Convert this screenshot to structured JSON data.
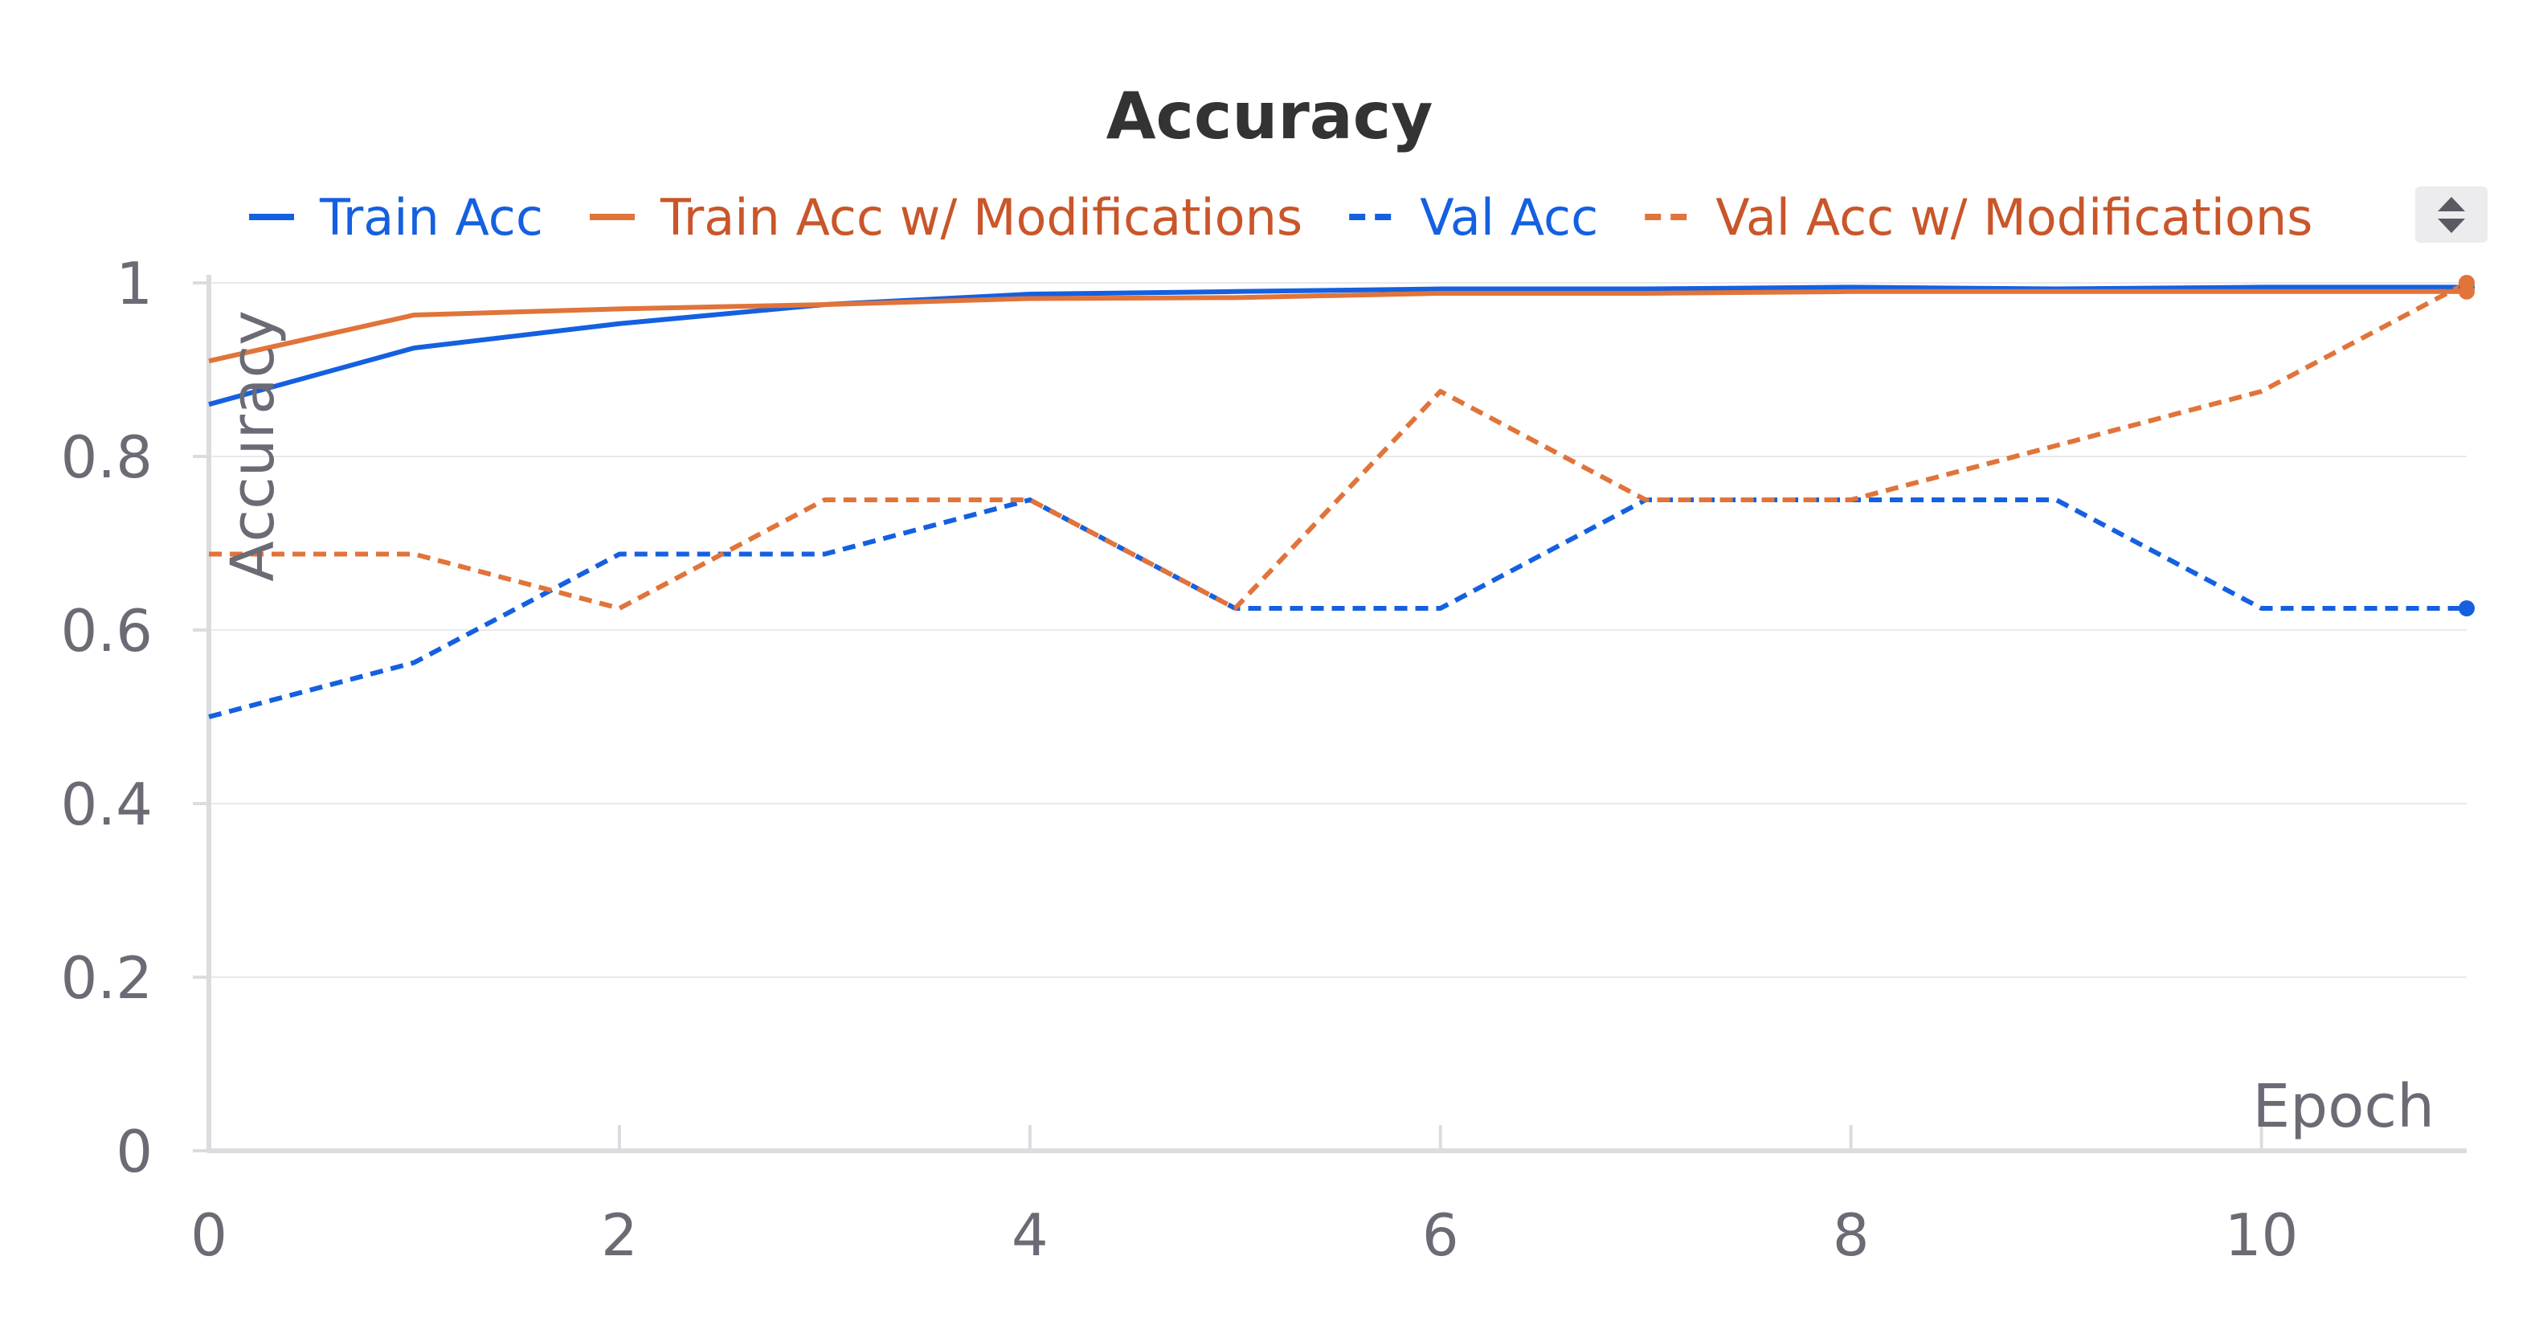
{
  "chart_data": {
    "type": "line",
    "title": "Accuracy",
    "xlabel": "Epoch",
    "ylabel": "Accuracy",
    "xlim": [
      0,
      11
    ],
    "ylim": [
      0,
      1
    ],
    "x": [
      0,
      1,
      2,
      3,
      4,
      5,
      6,
      7,
      8,
      9,
      10,
      11
    ],
    "x_ticks": [
      0,
      2,
      4,
      6,
      8,
      10
    ],
    "x_tick_labels": [
      "0",
      "2",
      "4",
      "6",
      "8",
      "10"
    ],
    "y_ticks": [
      0,
      0.2,
      0.4,
      0.6,
      0.8,
      1
    ],
    "y_tick_labels": [
      "0",
      "0.2",
      "0.4",
      "0.6",
      "0.8",
      "1"
    ],
    "grid": true,
    "legend_position": "top",
    "series": [
      {
        "name": "Train Acc",
        "color": "#1560e0",
        "dash": "solid",
        "legend_text_color": "#1560e0",
        "values": [
          0.86,
          0.925,
          0.953,
          0.975,
          0.987,
          0.99,
          0.993,
          0.993,
          0.995,
          0.993,
          0.995,
          0.995
        ]
      },
      {
        "name": "Train Acc w/ Modifications",
        "color": "#e0743a",
        "dash": "solid",
        "legend_text_color": "#c9562a",
        "values": [
          0.91,
          0.963,
          0.97,
          0.975,
          0.982,
          0.983,
          0.988,
          0.988,
          0.99,
          0.99,
          0.99,
          0.99
        ]
      },
      {
        "name": "Val Acc",
        "color": "#1560e0",
        "dash": "dashed",
        "legend_text_color": "#1560e0",
        "values": [
          0.5,
          0.5625,
          0.6875,
          0.6875,
          0.75,
          0.625,
          0.625,
          0.75,
          0.75,
          0.75,
          0.625,
          0.625
        ]
      },
      {
        "name": "Val Acc w/ Modifications",
        "color": "#e0743a",
        "dash": "dashed",
        "legend_text_color": "#c9562a",
        "values": [
          0.6875,
          0.6875,
          0.625,
          0.75,
          0.75,
          0.625,
          0.875,
          0.75,
          0.75,
          0.8125,
          0.875,
          1.0
        ]
      }
    ],
    "colors": {
      "grid": "#e9e9ec",
      "axis": "#dcdce0",
      "tick_text": "#6b6b76",
      "title": "#333333",
      "scroll_control_bg": "#ececef",
      "scroll_control_arrows": "#5a5a63"
    },
    "legend_scroll_icon": "sort-arrows-icon"
  }
}
